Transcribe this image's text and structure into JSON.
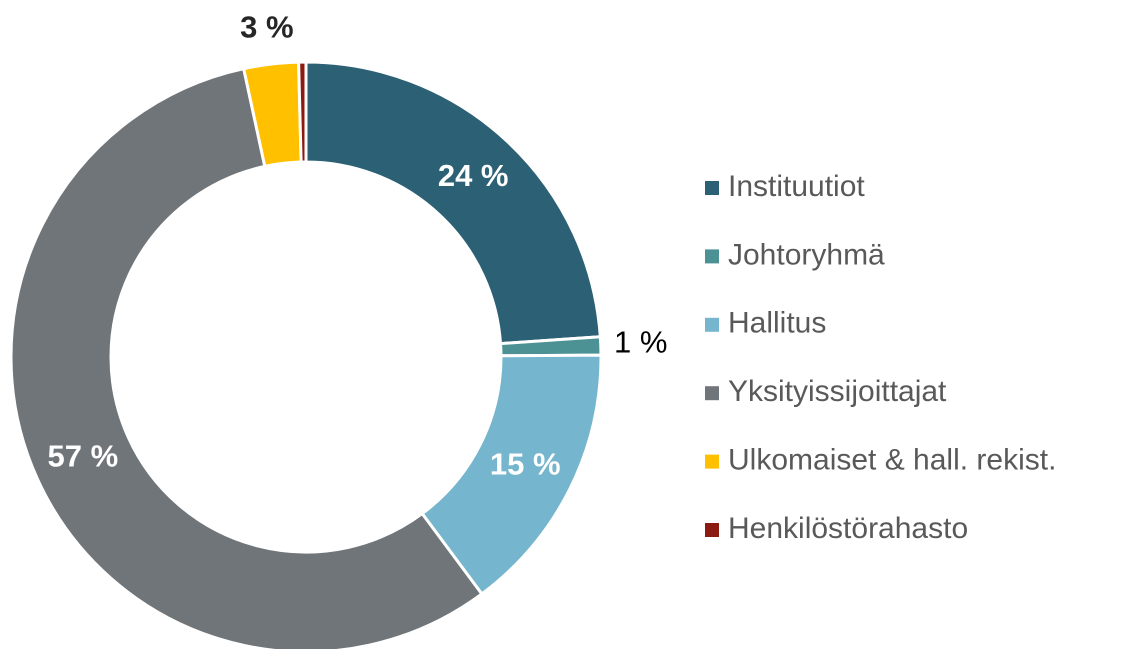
{
  "chart_data": {
    "type": "donut",
    "categories": [
      "Instituutiot",
      "Johtoryhmä",
      "Hallitus",
      "Yksityissijoittajat",
      "Ulkomaiset & hall. rekist.",
      "Henkilöstörahasto"
    ],
    "values": [
      24,
      1,
      15,
      57,
      3,
      0.4
    ],
    "value_labels": [
      "24 %",
      "1 %",
      "15 %",
      "57 %",
      "3 %",
      null
    ],
    "colors": [
      "#2c6075",
      "#4c9194",
      "#75b5cd",
      "#6f7579",
      "#ffc000",
      "#8b1a10"
    ],
    "legend": "right"
  }
}
